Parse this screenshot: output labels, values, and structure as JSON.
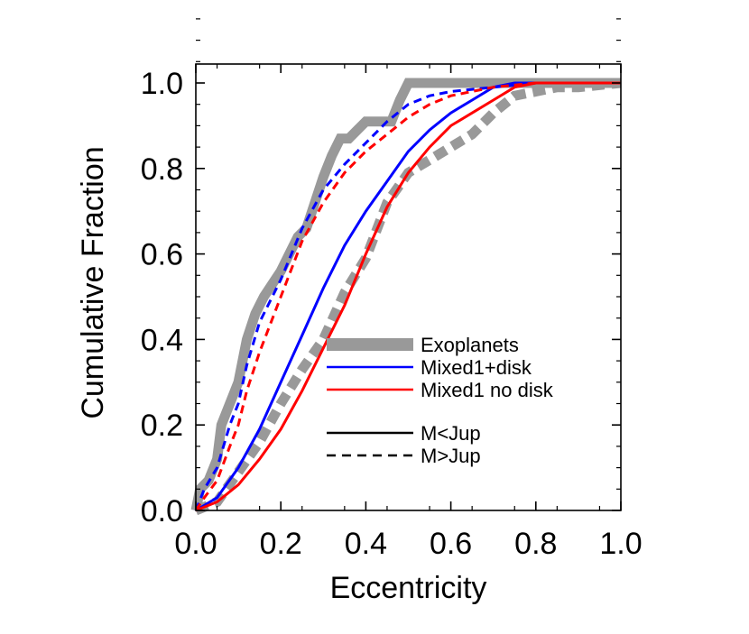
{
  "chart_data": {
    "type": "line",
    "xlabel": "Eccentricity",
    "ylabel": "Cumulative Fraction",
    "xlim": [
      0.0,
      1.0
    ],
    "ylim": [
      0.0,
      1.0
    ],
    "x_ticks": [
      "0.0",
      "0.2",
      "0.4",
      "0.6",
      "0.8",
      "1.0"
    ],
    "y_ticks": [
      "0.0",
      "0.2",
      "0.4",
      "0.6",
      "0.8",
      "1.0"
    ],
    "grid": false,
    "legend_position": "center-right",
    "legend": [
      {
        "label": "Exoplanets",
        "color": "#999999",
        "style": "thick"
      },
      {
        "label": "Mixed1+disk",
        "color": "#0000ff",
        "style": "solid"
      },
      {
        "label": "Mixed1 no disk",
        "color": "#ff0000",
        "style": "solid"
      },
      {
        "label": "M<Jup",
        "color": "#000000",
        "style": "solid"
      },
      {
        "label": "M>Jup",
        "color": "#000000",
        "style": "dashed"
      }
    ],
    "series": [
      {
        "color": "#999999",
        "style": "thick-solid",
        "points": [
          [
            0.0,
            0.0
          ],
          [
            0.01,
            0.05
          ],
          [
            0.03,
            0.07
          ],
          [
            0.05,
            0.12
          ],
          [
            0.06,
            0.2
          ],
          [
            0.08,
            0.25
          ],
          [
            0.1,
            0.3
          ],
          [
            0.12,
            0.4
          ],
          [
            0.14,
            0.46
          ],
          [
            0.16,
            0.5
          ],
          [
            0.18,
            0.53
          ],
          [
            0.2,
            0.56
          ],
          [
            0.22,
            0.6
          ],
          [
            0.24,
            0.64
          ],
          [
            0.26,
            0.66
          ],
          [
            0.28,
            0.72
          ],
          [
            0.3,
            0.78
          ],
          [
            0.32,
            0.83
          ],
          [
            0.34,
            0.87
          ],
          [
            0.36,
            0.87
          ],
          [
            0.38,
            0.89
          ],
          [
            0.4,
            0.91
          ],
          [
            0.46,
            0.91
          ],
          [
            0.48,
            0.96
          ],
          [
            0.5,
            1.0
          ],
          [
            1.0,
            1.0
          ]
        ]
      },
      {
        "color": "#999999",
        "style": "thick-dashed",
        "points": [
          [
            0.0,
            0.0
          ],
          [
            0.05,
            0.02
          ],
          [
            0.1,
            0.09
          ],
          [
            0.15,
            0.16
          ],
          [
            0.2,
            0.25
          ],
          [
            0.25,
            0.33
          ],
          [
            0.3,
            0.4
          ],
          [
            0.35,
            0.51
          ],
          [
            0.4,
            0.59
          ],
          [
            0.45,
            0.72
          ],
          [
            0.5,
            0.79
          ],
          [
            0.55,
            0.82
          ],
          [
            0.6,
            0.85
          ],
          [
            0.65,
            0.88
          ],
          [
            0.7,
            0.93
          ],
          [
            0.75,
            0.97
          ],
          [
            0.8,
            0.98
          ],
          [
            0.85,
            0.99
          ],
          [
            0.9,
            0.99
          ],
          [
            1.0,
            1.0
          ]
        ]
      },
      {
        "color": "#0000ff",
        "style": "solid",
        "points": [
          [
            0.0,
            0.0
          ],
          [
            0.05,
            0.03
          ],
          [
            0.1,
            0.1
          ],
          [
            0.15,
            0.19
          ],
          [
            0.2,
            0.3
          ],
          [
            0.25,
            0.41
          ],
          [
            0.3,
            0.52
          ],
          [
            0.35,
            0.62
          ],
          [
            0.4,
            0.7
          ],
          [
            0.45,
            0.77
          ],
          [
            0.5,
            0.84
          ],
          [
            0.55,
            0.89
          ],
          [
            0.6,
            0.93
          ],
          [
            0.65,
            0.96
          ],
          [
            0.7,
            0.99
          ],
          [
            0.75,
            1.0
          ],
          [
            1.0,
            1.0
          ]
        ]
      },
      {
        "color": "#0000ff",
        "style": "dashed",
        "points": [
          [
            0.0,
            0.0
          ],
          [
            0.02,
            0.05
          ],
          [
            0.05,
            0.1
          ],
          [
            0.08,
            0.2
          ],
          [
            0.1,
            0.25
          ],
          [
            0.12,
            0.34
          ],
          [
            0.15,
            0.44
          ],
          [
            0.2,
            0.54
          ],
          [
            0.25,
            0.66
          ],
          [
            0.3,
            0.75
          ],
          [
            0.35,
            0.81
          ],
          [
            0.4,
            0.86
          ],
          [
            0.45,
            0.91
          ],
          [
            0.5,
            0.95
          ],
          [
            0.55,
            0.97
          ],
          [
            0.6,
            0.98
          ],
          [
            0.7,
            0.99
          ],
          [
            0.8,
            1.0
          ],
          [
            1.0,
            1.0
          ]
        ]
      },
      {
        "color": "#ff0000",
        "style": "solid",
        "points": [
          [
            0.0,
            0.0
          ],
          [
            0.05,
            0.02
          ],
          [
            0.1,
            0.06
          ],
          [
            0.15,
            0.12
          ],
          [
            0.2,
            0.19
          ],
          [
            0.25,
            0.28
          ],
          [
            0.3,
            0.38
          ],
          [
            0.35,
            0.48
          ],
          [
            0.4,
            0.6
          ],
          [
            0.45,
            0.71
          ],
          [
            0.5,
            0.79
          ],
          [
            0.55,
            0.85
          ],
          [
            0.6,
            0.9
          ],
          [
            0.65,
            0.93
          ],
          [
            0.7,
            0.96
          ],
          [
            0.75,
            0.99
          ],
          [
            0.8,
            1.0
          ],
          [
            1.0,
            1.0
          ]
        ]
      },
      {
        "color": "#ff0000",
        "style": "dashed",
        "points": [
          [
            0.0,
            0.0
          ],
          [
            0.02,
            0.03
          ],
          [
            0.05,
            0.07
          ],
          [
            0.08,
            0.15
          ],
          [
            0.1,
            0.2
          ],
          [
            0.12,
            0.28
          ],
          [
            0.15,
            0.37
          ],
          [
            0.2,
            0.5
          ],
          [
            0.25,
            0.63
          ],
          [
            0.3,
            0.72
          ],
          [
            0.35,
            0.79
          ],
          [
            0.4,
            0.84
          ],
          [
            0.45,
            0.88
          ],
          [
            0.5,
            0.92
          ],
          [
            0.55,
            0.95
          ],
          [
            0.6,
            0.97
          ],
          [
            0.7,
            0.99
          ],
          [
            0.8,
            1.0
          ],
          [
            1.0,
            1.0
          ]
        ]
      }
    ]
  }
}
